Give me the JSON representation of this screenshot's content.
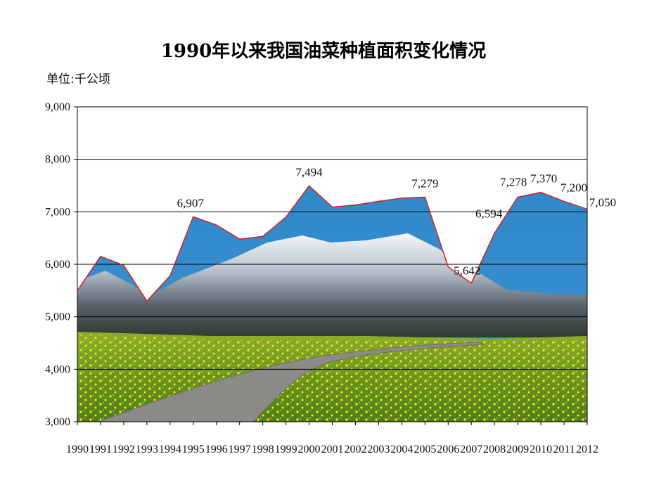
{
  "chart_data": {
    "type": "area",
    "title": "1990年以来我国油菜种植面积变化情况",
    "unit": "单位:千公顷",
    "ylim": [
      3000,
      9000
    ],
    "y_ticks": [
      "3,000",
      "4,000",
      "5,000",
      "6,000",
      "7,000",
      "8,000",
      "9,000"
    ],
    "x": [
      "1990",
      "1991",
      "1992",
      "1993",
      "1994",
      "1995",
      "1996",
      "1997",
      "1998",
      "1999",
      "2000",
      "2001",
      "2002",
      "2003",
      "2004",
      "2005",
      "2006",
      "2007",
      "2008",
      "2009",
      "2010",
      "2011",
      "2012"
    ],
    "values": [
      5500,
      6150,
      5980,
      5300,
      5780,
      6907,
      6750,
      6480,
      6530,
      6900,
      7494,
      7090,
      7130,
      7200,
      7260,
      7279,
      5950,
      5642,
      6594,
      7278,
      7370,
      7200,
      7050
    ],
    "data_labels": [
      {
        "year": "1995",
        "text": "6,907"
      },
      {
        "year": "2000",
        "text": "7,494"
      },
      {
        "year": "2005",
        "text": "7,279"
      },
      {
        "year": "2007",
        "text": "5,642"
      },
      {
        "year": "2008",
        "text": "6,594"
      },
      {
        "year": "2009",
        "text": "7,278"
      },
      {
        "year": "2010",
        "text": "7,370"
      },
      {
        "year": "2011",
        "text": "7,200"
      },
      {
        "year": "2012",
        "text": "7,050"
      }
    ],
    "grid": true,
    "line_color": "#d42020",
    "fill_color": "#2f86c8"
  }
}
